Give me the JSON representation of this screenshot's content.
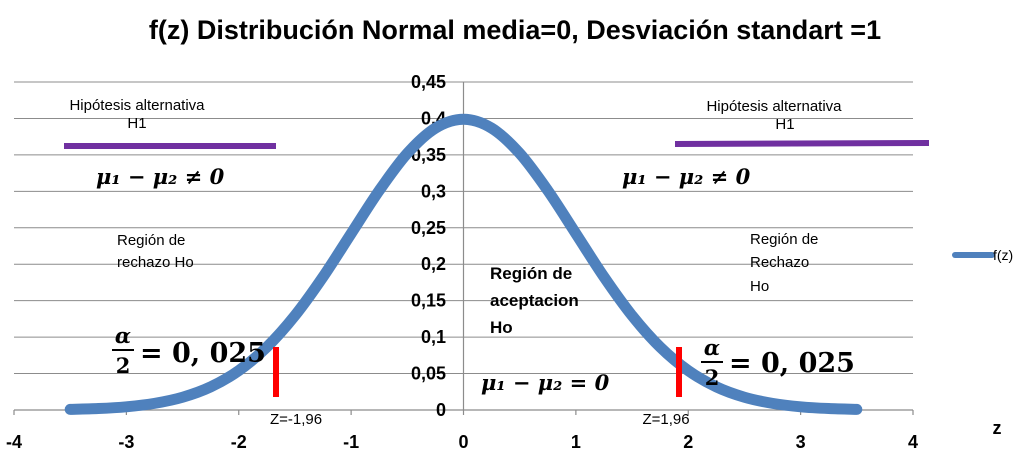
{
  "chart_data": {
    "type": "line",
    "title": "f(z) Distribución Normal media=0, Desviación standart =1",
    "xlabel": "z",
    "ylabel": "",
    "xlim": [
      -4,
      4
    ],
    "ylim": [
      0,
      0.45
    ],
    "x_ticks": [
      "-4",
      "-3",
      "-2",
      "-1",
      "0",
      "1",
      "2",
      "3",
      "4"
    ],
    "y_ticks": [
      "0",
      "0,05",
      "0,1",
      "0,15",
      "0,2",
      "0,25",
      "0,3",
      "0,35",
      "0,4",
      "0,45"
    ],
    "grid": true,
    "legend_position": "right",
    "series": [
      {
        "name": "f(z)",
        "color": "#4f81bd",
        "x": [
          -3.5,
          -3.25,
          -3.0,
          -2.75,
          -2.5,
          -2.25,
          -2.0,
          -1.75,
          -1.5,
          -1.25,
          -1.0,
          -0.75,
          -0.5,
          -0.25,
          0.0,
          0.25,
          0.5,
          0.75,
          1.0,
          1.25,
          1.5,
          1.75,
          2.0,
          2.25,
          2.5,
          2.75,
          3.0,
          3.25,
          3.5
        ],
        "y": [
          0.0009,
          0.002,
          0.0044,
          0.0091,
          0.0175,
          0.0317,
          0.054,
          0.0863,
          0.1295,
          0.1826,
          0.242,
          0.3011,
          0.3521,
          0.3867,
          0.3989,
          0.3867,
          0.3521,
          0.3011,
          0.242,
          0.1826,
          0.1295,
          0.0863,
          0.054,
          0.0317,
          0.0175,
          0.0091,
          0.0044,
          0.002,
          0.0009
        ]
      }
    ],
    "critical_markers": [
      {
        "z": -1.96,
        "label": "Z=-1,96",
        "color": "#ff0000"
      },
      {
        "z": 1.96,
        "label": "Z=1,96",
        "color": "#ff0000"
      }
    ],
    "hypothesis_bar_color": "#7030a0",
    "annotations": {
      "left_alt_line1": "Hipótesis alternativa",
      "left_alt_line2": "H1",
      "right_alt_line1": "Hipótesis alternativa",
      "right_alt_line2": "H1",
      "ineq_left": "μ₁ − μ₂ ≠ 0",
      "ineq_right": "μ₁ − μ₂ ≠ 0",
      "reject_left_line1": "Región de",
      "reject_left_line2": "rechazo Ho",
      "reject_right_line1": "Región de",
      "reject_right_line2": "Rechazo",
      "reject_right_line3": "Ho",
      "accept_line1": "Región de",
      "accept_line2": "aceptacion",
      "accept_line3": "Ho",
      "eq_center": "μ₁ − μ₂ = 0",
      "alpha_num": "α",
      "alpha_den": "2",
      "alpha_value": "= 0, 025"
    }
  }
}
